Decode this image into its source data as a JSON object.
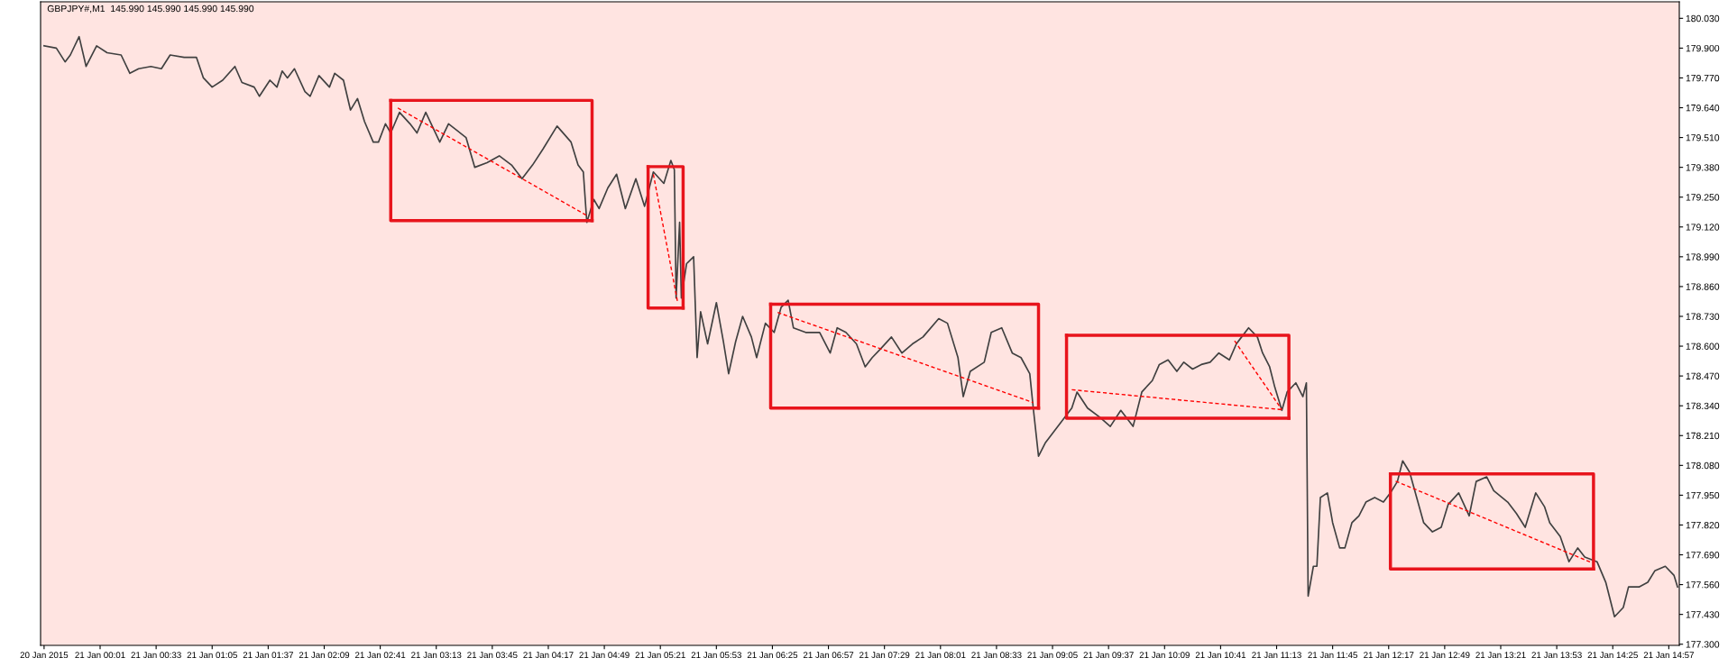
{
  "chart_data": {
    "type": "line",
    "title": "GBPJPY#,M1  145.990 145.990 145.990 145.990",
    "xlim": [
      "2015-01-20T23:27",
      "2015-01-21T15:03"
    ],
    "ylim": [
      177.295,
      180.102
    ],
    "grid": false,
    "legend": false,
    "marker": "none",
    "line_style": "solid",
    "xticks": [
      {
        "value": "2015-01-20T23:29",
        "label": "20 Jan 2015"
      },
      {
        "value": "2015-01-21T00:01",
        "label": "21 Jan 00:01"
      },
      {
        "value": "2015-01-21T00:33",
        "label": "21 Jan 00:33"
      },
      {
        "value": "2015-01-21T01:05",
        "label": "21 Jan 01:05"
      },
      {
        "value": "2015-01-21T01:37",
        "label": "21 Jan 01:37"
      },
      {
        "value": "2015-01-21T02:09",
        "label": "21 Jan 02:09"
      },
      {
        "value": "2015-01-21T02:41",
        "label": "21 Jan 02:41"
      },
      {
        "value": "2015-01-21T03:13",
        "label": "21 Jan 03:13"
      },
      {
        "value": "2015-01-21T03:45",
        "label": "21 Jan 03:45"
      },
      {
        "value": "2015-01-21T04:17",
        "label": "21 Jan 04:17"
      },
      {
        "value": "2015-01-21T04:49",
        "label": "21 Jan 04:49"
      },
      {
        "value": "2015-01-21T05:21",
        "label": "21 Jan 05:21"
      },
      {
        "value": "2015-01-21T05:53",
        "label": "21 Jan 05:53"
      },
      {
        "value": "2015-01-21T06:25",
        "label": "21 Jan 06:25"
      },
      {
        "value": "2015-01-21T06:57",
        "label": "21 Jan 06:57"
      },
      {
        "value": "2015-01-21T07:29",
        "label": "21 Jan 07:29"
      },
      {
        "value": "2015-01-21T08:01",
        "label": "21 Jan 08:01"
      },
      {
        "value": "2015-01-21T08:33",
        "label": "21 Jan 08:33"
      },
      {
        "value": "2015-01-21T09:05",
        "label": "21 Jan 09:05"
      },
      {
        "value": "2015-01-21T09:37",
        "label": "21 Jan 09:37"
      },
      {
        "value": "2015-01-21T10:09",
        "label": "21 Jan 10:09"
      },
      {
        "value": "2015-01-21T10:41",
        "label": "21 Jan 10:41"
      },
      {
        "value": "2015-01-21T11:13",
        "label": "21 Jan 11:13"
      },
      {
        "value": "2015-01-21T11:45",
        "label": "21 Jan 11:45"
      },
      {
        "value": "2015-01-21T12:17",
        "label": "21 Jan 12:17"
      },
      {
        "value": "2015-01-21T12:49",
        "label": "21 Jan 12:49"
      },
      {
        "value": "2015-01-21T13:21",
        "label": "21 Jan 13:21"
      },
      {
        "value": "2015-01-21T13:53",
        "label": "21 Jan 13:53"
      },
      {
        "value": "2015-01-21T14:25",
        "label": "21 Jan 14:25"
      },
      {
        "value": "2015-01-21T14:57",
        "label": "21 Jan 14:57"
      }
    ],
    "yticks": [
      {
        "value": 177.3,
        "label": "177.300"
      },
      {
        "value": 177.43,
        "label": "177.430"
      },
      {
        "value": 177.56,
        "label": "177.560"
      },
      {
        "value": 177.69,
        "label": "177.690"
      },
      {
        "value": 177.82,
        "label": "177.820"
      },
      {
        "value": 177.95,
        "label": "177.950"
      },
      {
        "value": 178.08,
        "label": "178.080"
      },
      {
        "value": 178.21,
        "label": "178.210"
      },
      {
        "value": 178.34,
        "label": "178.340"
      },
      {
        "value": 178.47,
        "label": "178.470"
      },
      {
        "value": 178.6,
        "label": "178.600"
      },
      {
        "value": 178.73,
        "label": "178.730"
      },
      {
        "value": 178.86,
        "label": "178.860"
      },
      {
        "value": 178.99,
        "label": "178.990"
      },
      {
        "value": 179.12,
        "label": "179.120"
      },
      {
        "value": 179.25,
        "label": "179.250"
      },
      {
        "value": 179.38,
        "label": "179.380"
      },
      {
        "value": 179.51,
        "label": "179.510"
      },
      {
        "value": 179.64,
        "label": "179.640"
      },
      {
        "value": 179.77,
        "label": "179.770"
      },
      {
        "value": 179.9,
        "label": "179.900"
      },
      {
        "value": 180.03,
        "label": "180.030"
      }
    ],
    "series": [
      {
        "color": "#404040",
        "x": [
          "2015-01-20T23:29",
          "2015-01-20T23:36",
          "2015-01-20T23:41",
          "2015-01-20T23:44",
          "2015-01-20T23:49",
          "2015-01-20T23:53",
          "2015-01-20T23:59",
          "2015-01-21T00:05",
          "2015-01-21T00:13",
          "2015-01-21T00:18",
          "2015-01-21T00:23",
          "2015-01-21T00:30",
          "2015-01-21T00:36",
          "2015-01-21T00:41",
          "2015-01-21T00:49",
          "2015-01-21T00:56",
          "2015-01-21T01:00",
          "2015-01-21T01:05",
          "2015-01-21T01:11",
          "2015-01-21T01:18",
          "2015-01-21T01:22",
          "2015-01-21T01:29",
          "2015-01-21T01:32",
          "2015-01-21T01:38",
          "2015-01-21T01:42",
          "2015-01-21T01:45",
          "2015-01-21T01:48",
          "2015-01-21T01:52",
          "2015-01-21T01:58",
          "2015-01-21T02:01",
          "2015-01-21T02:06",
          "2015-01-21T02:12",
          "2015-01-21T02:15",
          "2015-01-21T02:20",
          "2015-01-21T02:24",
          "2015-01-21T02:28",
          "2015-01-21T02:32",
          "2015-01-21T02:37",
          "2015-01-21T02:40",
          "2015-01-21T02:44",
          "2015-01-21T02:47",
          "2015-01-21T02:52",
          "2015-01-21T02:58",
          "2015-01-21T03:02",
          "2015-01-21T03:07",
          "2015-01-21T03:15",
          "2015-01-21T03:20",
          "2015-01-21T03:30",
          "2015-01-21T03:35",
          "2015-01-21T03:42",
          "2015-01-21T03:49",
          "2015-01-21T03:56",
          "2015-01-21T04:02",
          "2015-01-21T04:08",
          "2015-01-21T04:14",
          "2015-01-21T04:22",
          "2015-01-21T04:30",
          "2015-01-21T04:34",
          "2015-01-21T04:37",
          "2015-01-21T04:39",
          "2015-01-21T04:43",
          "2015-01-21T04:46",
          "2015-01-21T04:51",
          "2015-01-21T04:56",
          "2015-01-21T05:01",
          "2015-01-21T05:07",
          "2015-01-21T05:12",
          "2015-01-21T05:17",
          "2015-01-21T05:23",
          "2015-01-21T05:27",
          "2015-01-21T05:29",
          "2015-01-21T05:30",
          "2015-01-21T05:32",
          "2015-01-21T05:33",
          "2015-01-21T05:36",
          "2015-01-21T05:40",
          "2015-01-21T05:42",
          "2015-01-21T05:44",
          "2015-01-21T05:48",
          "2015-01-21T05:53",
          "2015-01-21T05:57",
          "2015-01-21T06:00",
          "2015-01-21T06:04",
          "2015-01-21T06:08",
          "2015-01-21T06:13",
          "2015-01-21T06:16",
          "2015-01-21T06:21",
          "2015-01-21T06:26",
          "2015-01-21T06:30",
          "2015-01-21T06:34",
          "2015-01-21T06:37",
          "2015-01-21T06:44",
          "2015-01-21T06:52",
          "2015-01-21T06:58",
          "2015-01-21T07:02",
          "2015-01-21T07:07",
          "2015-01-21T07:13",
          "2015-01-21T07:18",
          "2015-01-21T07:22",
          "2015-01-21T07:27",
          "2015-01-21T07:33",
          "2015-01-21T07:39",
          "2015-01-21T07:45",
          "2015-01-21T07:51",
          "2015-01-21T08:00",
          "2015-01-21T08:05",
          "2015-01-21T08:11",
          "2015-01-21T08:14",
          "2015-01-21T08:18",
          "2015-01-21T08:26",
          "2015-01-21T08:30",
          "2015-01-21T08:36",
          "2015-01-21T08:42",
          "2015-01-21T08:47",
          "2015-01-21T08:52",
          "2015-01-21T08:54",
          "2015-01-21T08:57",
          "2015-01-21T09:01",
          "2015-01-21T09:06",
          "2015-01-21T09:11",
          "2015-01-21T09:16",
          "2015-01-21T09:19",
          "2015-01-21T09:25",
          "2015-01-21T09:32",
          "2015-01-21T09:38",
          "2015-01-21T09:44",
          "2015-01-21T09:51",
          "2015-01-21T09:56",
          "2015-01-21T10:02",
          "2015-01-21T10:06",
          "2015-01-21T10:11",
          "2015-01-21T10:16",
          "2015-01-21T10:20",
          "2015-01-21T10:25",
          "2015-01-21T10:30",
          "2015-01-21T10:35",
          "2015-01-21T10:40",
          "2015-01-21T10:46",
          "2015-01-21T10:50",
          "2015-01-21T10:53",
          "2015-01-21T10:57",
          "2015-01-21T11:02",
          "2015-01-21T11:05",
          "2015-01-21T11:09",
          "2015-01-21T11:12",
          "2015-01-21T11:16",
          "2015-01-21T11:19",
          "2015-01-21T11:24",
          "2015-01-21T11:28",
          "2015-01-21T11:30",
          "2015-01-21T11:31",
          "2015-01-21T11:34",
          "2015-01-21T11:36",
          "2015-01-21T11:38",
          "2015-01-21T11:42",
          "2015-01-21T11:45",
          "2015-01-21T11:49",
          "2015-01-21T11:52",
          "2015-01-21T11:56",
          "2015-01-21T12:00",
          "2015-01-21T12:04",
          "2015-01-21T12:09",
          "2015-01-21T12:14",
          "2015-01-21T12:18",
          "2015-01-21T12:22",
          "2015-01-21T12:25",
          "2015-01-21T12:29",
          "2015-01-21T12:33",
          "2015-01-21T12:37",
          "2015-01-21T12:42",
          "2015-01-21T12:47",
          "2015-01-21T12:51",
          "2015-01-21T12:57",
          "2015-01-21T13:03",
          "2015-01-21T13:07",
          "2015-01-21T13:13",
          "2015-01-21T13:17",
          "2015-01-21T13:25",
          "2015-01-21T13:30",
          "2015-01-21T13:35",
          "2015-01-21T13:41",
          "2015-01-21T13:46",
          "2015-01-21T13:49",
          "2015-01-21T13:55",
          "2015-01-21T14:00",
          "2015-01-21T14:05",
          "2015-01-21T14:09",
          "2015-01-21T14:16",
          "2015-01-21T14:21",
          "2015-01-21T14:26",
          "2015-01-21T14:31",
          "2015-01-21T14:34",
          "2015-01-21T14:40",
          "2015-01-21T14:45",
          "2015-01-21T14:49",
          "2015-01-21T14:55",
          "2015-01-21T15:00",
          "2015-01-21T15:02"
        ],
        "values": [
          179.91,
          179.9,
          179.84,
          179.87,
          179.95,
          179.82,
          179.91,
          179.88,
          179.87,
          179.79,
          179.81,
          179.82,
          179.81,
          179.87,
          179.86,
          179.86,
          179.77,
          179.73,
          179.76,
          179.82,
          179.75,
          179.73,
          179.69,
          179.76,
          179.73,
          179.8,
          179.77,
          179.81,
          179.71,
          179.69,
          179.78,
          179.73,
          179.79,
          179.76,
          179.63,
          179.68,
          179.58,
          179.49,
          179.49,
          179.57,
          179.53,
          179.62,
          179.57,
          179.53,
          179.62,
          179.49,
          179.57,
          179.51,
          179.38,
          179.4,
          179.43,
          179.39,
          179.33,
          179.39,
          179.46,
          179.56,
          179.49,
          179.39,
          179.36,
          179.14,
          179.24,
          179.2,
          179.29,
          179.35,
          179.2,
          179.33,
          179.21,
          179.36,
          179.31,
          179.41,
          179.37,
          178.81,
          179.14,
          178.81,
          178.96,
          178.99,
          178.55,
          178.75,
          178.61,
          178.79,
          178.62,
          178.48,
          178.62,
          178.73,
          178.64,
          178.55,
          178.7,
          178.66,
          178.77,
          178.8,
          178.68,
          178.66,
          178.66,
          178.57,
          178.68,
          178.66,
          178.61,
          178.51,
          178.55,
          178.59,
          178.64,
          178.57,
          178.61,
          178.64,
          178.72,
          178.7,
          178.55,
          178.38,
          178.49,
          178.53,
          178.66,
          178.68,
          178.57,
          178.55,
          178.48,
          178.33,
          178.12,
          178.18,
          178.23,
          178.28,
          178.33,
          178.4,
          178.33,
          178.29,
          178.25,
          178.32,
          178.25,
          178.4,
          178.45,
          178.52,
          178.54,
          178.49,
          178.53,
          178.5,
          178.52,
          178.53,
          178.57,
          178.54,
          178.61,
          178.64,
          178.68,
          178.64,
          178.57,
          178.51,
          178.42,
          178.32,
          178.4,
          178.44,
          178.38,
          178.44,
          177.51,
          177.64,
          177.64,
          177.94,
          177.96,
          177.83,
          177.72,
          177.72,
          177.83,
          177.86,
          177.92,
          177.94,
          177.92,
          177.96,
          178.01,
          178.1,
          178.05,
          177.94,
          177.83,
          177.79,
          177.81,
          177.91,
          177.96,
          177.86,
          178.01,
          178.03,
          177.97,
          177.92,
          177.87,
          177.81,
          177.96,
          177.9,
          177.83,
          177.77,
          177.66,
          177.72,
          177.68,
          177.66,
          177.57,
          177.42,
          177.46,
          177.55,
          177.55,
          177.57,
          177.62,
          177.64,
          177.6,
          177.55
        ]
      },
      {
        "color": "#e8141c",
        "x": [
          "2015-01-21T02:47",
          "2015-01-21T04:42",
          "2015-01-21T04:42"
        ],
        "values": [
          179.672,
          179.672,
          179.148
        ]
      },
      {
        "color": "#e8141c",
        "x": [
          "2015-01-21T04:42",
          "2015-01-21T02:47",
          "2015-01-21T02:47"
        ],
        "values": [
          179.148,
          179.148,
          179.672
        ]
      },
      {
        "color": "#e8141c",
        "x": [
          "2015-01-21T05:14",
          "2015-01-21T05:34",
          "2015-01-21T05:34"
        ],
        "values": [
          179.383,
          179.383,
          178.766
        ]
      },
      {
        "color": "#e8141c",
        "x": [
          "2015-01-21T05:34",
          "2015-01-21T05:14",
          "2015-01-21T05:14"
        ],
        "values": [
          178.766,
          178.766,
          179.383
        ]
      },
      {
        "color": "#e8141c",
        "x": [
          "2015-01-21T06:24",
          "2015-01-21T08:57",
          "2015-01-21T08:57"
        ],
        "values": [
          178.783,
          178.783,
          178.33
        ]
      },
      {
        "color": "#e8141c",
        "x": [
          "2015-01-21T08:57",
          "2015-01-21T06:24",
          "2015-01-21T06:24"
        ],
        "values": [
          178.33,
          178.33,
          178.783
        ]
      },
      {
        "color": "#e8141c",
        "x": [
          "2015-01-21T09:13",
          "2015-01-21T11:20",
          "2015-01-21T11:20"
        ],
        "values": [
          178.647,
          178.647,
          178.286
        ]
      },
      {
        "color": "#e8141c",
        "x": [
          "2015-01-21T11:20",
          "2015-01-21T09:13",
          "2015-01-21T09:13"
        ],
        "values": [
          178.286,
          178.286,
          178.647
        ]
      },
      {
        "color": "#e8141c",
        "x": [
          "2015-01-21T12:18",
          "2015-01-21T14:14",
          "2015-01-21T14:14"
        ],
        "values": [
          178.043,
          178.043,
          177.628
        ]
      },
      {
        "color": "#e8141c",
        "x": [
          "2015-01-21T14:14",
          "2015-01-21T12:18",
          "2015-01-21T12:18"
        ],
        "values": [
          177.628,
          177.628,
          178.043
        ]
      },
      {
        "color": "#ff0000",
        "line_style": "dashed",
        "x": [
          "2015-01-21T02:51",
          "2015-01-21T04:39"
        ],
        "values": [
          179.639,
          179.17
        ]
      },
      {
        "color": "#ff0000",
        "line_style": "dashed",
        "x": [
          "2015-01-21T05:17",
          "2015-01-21T05:31"
        ],
        "values": [
          179.35,
          178.786
        ]
      },
      {
        "color": "#ff0000",
        "line_style": "dashed",
        "x": [
          "2015-01-21T06:28",
          "2015-01-21T08:54"
        ],
        "values": [
          178.747,
          178.354
        ]
      },
      {
        "color": "#ff0000",
        "line_style": "dashed",
        "x": [
          "2015-01-21T09:16",
          "2015-01-21T11:16"
        ],
        "values": [
          178.41,
          178.323
        ]
      },
      {
        "color": "#ff0000",
        "line_style": "dashed",
        "x": [
          "2015-01-21T10:49",
          "2015-01-21T11:16"
        ],
        "values": [
          178.623,
          178.323
        ]
      },
      {
        "color": "#ff0000",
        "line_style": "dashed",
        "x": [
          "2015-01-21T12:21",
          "2015-01-21T14:12"
        ],
        "values": [
          178.011,
          177.659
        ]
      }
    ]
  }
}
